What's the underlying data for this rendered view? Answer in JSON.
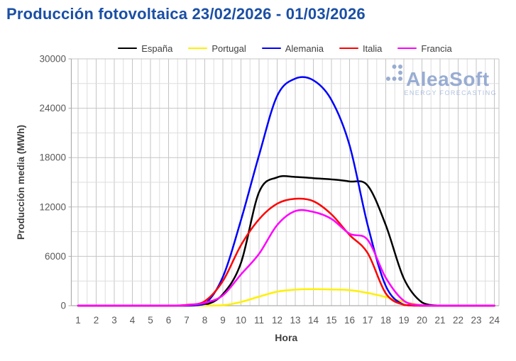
{
  "page": {
    "title": "Producción fotovoltaica 23/02/2026 - 01/03/2026"
  },
  "logo": {
    "name": "AleaSoft",
    "tagline": "ENERGY FORECASTING",
    "color": "#8FA5CF",
    "tagline_color": "#A9BBDC"
  },
  "colors": {
    "title": "#1B4FA5",
    "grid_minor": "#DDDDDD",
    "grid_major": "#C5C5C5",
    "axis": "#ADADAD",
    "tick_label": "#595959",
    "axis_title": "#3F3F3F",
    "legend_label": "#404040"
  },
  "chart_data": {
    "type": "line",
    "title": "Producción fotovoltaica 23/02/2026 - 01/03/2026",
    "xlabel": "Hora",
    "ylabel": "Producción media (MWh)",
    "x": [
      1,
      2,
      3,
      4,
      5,
      6,
      7,
      8,
      9,
      10,
      11,
      12,
      13,
      14,
      15,
      16,
      17,
      18,
      19,
      20,
      21,
      22,
      23,
      24
    ],
    "xlim": [
      1,
      24
    ],
    "ylim": [
      0,
      30000
    ],
    "yticks": [
      0,
      6000,
      12000,
      18000,
      24000,
      30000
    ],
    "grid": {
      "x_step": 0.5,
      "x_major_every": 1,
      "y_step": 3000,
      "y_major_every": 6000,
      "visible": true
    },
    "legend_position": "top",
    "series": [
      {
        "name": "España",
        "color": "#000000",
        "values": [
          0,
          0,
          0,
          0,
          0,
          0,
          0,
          80,
          1400,
          5200,
          13800,
          15600,
          15650,
          15500,
          15350,
          15100,
          14600,
          9800,
          3300,
          400,
          0,
          0,
          0,
          0
        ]
      },
      {
        "name": "Portugal",
        "color": "#FFF000",
        "values": [
          0,
          0,
          0,
          0,
          0,
          0,
          0,
          0,
          50,
          450,
          1100,
          1700,
          1950,
          2000,
          1970,
          1890,
          1550,
          1050,
          480,
          50,
          0,
          0,
          0,
          0
        ]
      },
      {
        "name": "Alemania",
        "color": "#0000FE",
        "values": [
          0,
          0,
          0,
          0,
          0,
          0,
          0,
          200,
          3500,
          10400,
          18300,
          25500,
          27600,
          27400,
          25000,
          19500,
          9800,
          2400,
          100,
          0,
          0,
          0,
          0,
          0
        ]
      },
      {
        "name": "Italia",
        "color": "#FE0000",
        "values": [
          0,
          0,
          0,
          0,
          0,
          0,
          100,
          550,
          3000,
          7350,
          10500,
          12400,
          13000,
          12700,
          11100,
          8600,
          6400,
          1500,
          100,
          0,
          0,
          0,
          0,
          0
        ]
      },
      {
        "name": "Francia",
        "color": "#FF00FF",
        "values": [
          0,
          0,
          0,
          0,
          0,
          0,
          50,
          350,
          1250,
          3800,
          6300,
          9800,
          11500,
          11400,
          10550,
          8750,
          8000,
          3400,
          600,
          50,
          0,
          0,
          0,
          0
        ]
      }
    ]
  }
}
